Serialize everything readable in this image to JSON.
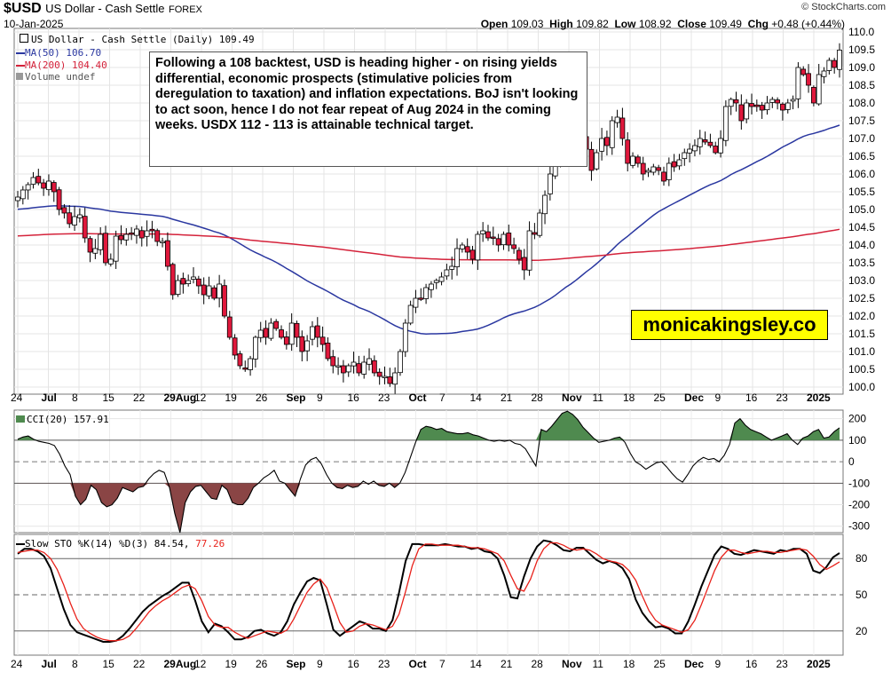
{
  "header": {
    "ticker": "$USD",
    "name": "US Dollar - Cash Settle",
    "exchange": "FOREX",
    "date": "10-Jan-2025",
    "copyright": "© StockCharts.com",
    "ohlc": {
      "open_label": "Open",
      "open": "109.03",
      "high_label": "High",
      "high": "109.82",
      "low_label": "Low",
      "low": "108.92",
      "close_label": "Close",
      "close": "109.49",
      "chg_label": "Chg",
      "chg": "+0.48 (+0.44%)"
    }
  },
  "legend": {
    "main": "US Dollar - Cash Settle (Daily) 109.49",
    "ma50": "MA(50) 106.70",
    "ma200": "MA(200) 104.40",
    "volume": "Volume undef",
    "cci": "CCI(20) 157.91",
    "sto_prefix": "Slow STO %K(14) %D(3)",
    "sto_k": "84.54,",
    "sto_d": "77.26"
  },
  "annotation": "Following a 108 backtest, USD is heading higher - on rising yields differential, economic prospects (stimulative policies from deregulation to taxation) and inflation expectations. BoJ isn't looking to act soon, hence I do not fear repeat of Aug  2024 in the coming weeks. USDX 112 - 113 is attainable technical target.",
  "watermark": "monicakingsley.co",
  "colors": {
    "up_candle": "#ffffff",
    "down_candle": "#e0183c",
    "ma50": "#2a37a0",
    "ma200": "#d4223a",
    "cci_pos_fill": "#4f8a4f",
    "cci_neg_fill": "#8a4545",
    "sto_k": "#000000",
    "sto_d": "#e8211a"
  },
  "chart_data": [
    {
      "type": "candlestick",
      "title": "US Dollar - Cash Settle (Daily)",
      "x_axis_labels": [
        "24",
        "Jul",
        "8",
        "15",
        "22",
        "29Aug",
        "12",
        "19",
        "26",
        "Sep",
        "9",
        "16",
        "23",
        "Oct",
        "7",
        "14",
        "21",
        "28",
        "Nov",
        "11",
        "18",
        "25",
        "Dec",
        "9",
        "16",
        "23",
        "2025"
      ],
      "y_ticks": [
        100.0,
        100.5,
        101.0,
        101.5,
        102.0,
        102.5,
        103.0,
        103.5,
        104.0,
        104.5,
        105.0,
        105.5,
        106.0,
        106.5,
        107.0,
        107.5,
        108.0,
        108.5,
        109.0,
        109.5,
        110.0
      ],
      "ylim": [
        99.8,
        110.1
      ],
      "close": [
        105.35,
        105.55,
        105.7,
        105.9,
        105.75,
        105.6,
        105.8,
        105.5,
        105.0,
        104.9,
        104.6,
        104.8,
        104.85,
        104.2,
        103.8,
        103.9,
        104.3,
        103.5,
        103.6,
        104.25,
        104.15,
        104.3,
        104.3,
        104.45,
        104.2,
        104.4,
        104.4,
        104.1,
        104.1,
        103.4,
        102.6,
        103.0,
        102.9,
        103.0,
        103.1,
        102.85,
        102.6,
        102.85,
        102.5,
        102.9,
        102.0,
        101.4,
        100.9,
        100.6,
        100.5,
        100.8,
        101.4,
        101.6,
        101.4,
        101.8,
        101.65,
        101.4,
        101.2,
        101.8,
        101.4,
        101.0,
        101.3,
        101.7,
        101.4,
        101.2,
        100.8,
        100.6,
        100.6,
        100.4,
        100.6,
        100.7,
        100.4,
        100.7,
        100.8,
        100.4,
        100.3,
        100.3,
        100.1,
        100.4,
        101.0,
        101.8,
        102.3,
        102.5,
        102.5,
        102.8,
        102.9,
        103.0,
        103.1,
        103.3,
        103.4,
        103.9,
        104.0,
        103.8,
        103.6,
        104.3,
        104.4,
        104.2,
        104.2,
        104.0,
        104.3,
        104.0,
        103.9,
        103.6,
        103.3,
        104.4,
        104.3,
        104.9,
        105.4,
        106.0,
        106.3,
        106.6,
        106.8,
        106.5,
        106.8,
        107.1,
        106.7,
        106.1,
        106.6,
        107.0,
        106.8,
        107.5,
        107.6,
        107.0,
        106.3,
        106.5,
        106.3,
        106.0,
        106.1,
        106.2,
        106.1,
        105.8,
        106.3,
        106.2,
        106.4,
        106.6,
        106.7,
        106.8,
        107.0,
        106.9,
        106.8,
        106.6,
        107.0,
        107.9,
        108.1,
        108.0,
        107.5,
        108.0,
        107.9,
        107.9,
        107.8,
        108.0,
        108.1,
        108.0,
        107.8,
        108.0,
        108.1,
        109.0,
        108.8,
        108.5,
        108.0,
        108.8,
        108.9,
        109.2,
        109.0,
        109.49
      ],
      "ma50": "MA(50) 106.70 - smooth trend from ~105.0 (late Jun) to low ~101.5 (mid Oct) rising to 106.70",
      "ma200": "MA(200) 104.40 - from ~104.3 dipping to ~103.55 (Oct) and rising to 104.40"
    },
    {
      "type": "line",
      "title": "CCI(20) 157.91",
      "y_ticks": [
        200,
        100,
        0,
        -100,
        -200,
        -300
      ],
      "ylim": [
        -330,
        240
      ],
      "values": [
        105,
        115,
        120,
        105,
        95,
        90,
        85,
        75,
        35,
        -20,
        -60,
        -160,
        -200,
        -175,
        -110,
        -130,
        -190,
        -210,
        -200,
        -170,
        -120,
        -130,
        -140,
        -120,
        -115,
        -80,
        -55,
        -40,
        -50,
        -120,
        -240,
        -330,
        -190,
        -140,
        -115,
        -110,
        -140,
        -170,
        -175,
        -110,
        -130,
        -190,
        -200,
        -200,
        -170,
        -120,
        -100,
        -75,
        -60,
        -40,
        -90,
        -100,
        -130,
        -160,
        -80,
        -15,
        10,
        20,
        -10,
        -60,
        -100,
        -120,
        -125,
        -110,
        -120,
        -115,
        -90,
        -105,
        -90,
        -110,
        -115,
        -100,
        -120,
        -100,
        -50,
        20,
        90,
        150,
        165,
        160,
        150,
        155,
        140,
        135,
        130,
        130,
        135,
        125,
        120,
        110,
        100,
        95,
        100,
        95,
        100,
        85,
        80,
        60,
        20,
        -20,
        150,
        140,
        165,
        195,
        225,
        235,
        220,
        195,
        160,
        135,
        110,
        90,
        95,
        100,
        110,
        115,
        90,
        40,
        0,
        -15,
        -35,
        -20,
        -5,
        0,
        -25,
        -55,
        -80,
        -95,
        -60,
        -20,
        5,
        20,
        10,
        15,
        0,
        30,
        80,
        180,
        200,
        170,
        150,
        140,
        130,
        115,
        100,
        110,
        120,
        130,
        100,
        80,
        110,
        120,
        140,
        150,
        110,
        115,
        140,
        157.91
      ]
    },
    {
      "type": "line",
      "title": "Slow STO %K(14) %D(3) 84.54, 77.26",
      "y_ticks": [
        80,
        50,
        20
      ],
      "ylim": [
        0,
        100
      ],
      "series": [
        {
          "name": "%K(14)",
          "values": [
            84,
            88,
            88,
            86,
            82,
            72,
            55,
            38,
            25,
            19,
            17,
            15,
            13,
            11,
            11,
            12,
            16,
            22,
            29,
            36,
            41,
            45,
            49,
            52,
            56,
            60,
            60,
            45,
            28,
            19,
            26,
            24,
            19,
            13,
            13,
            15,
            20,
            21,
            18,
            16,
            19,
            28,
            42,
            52,
            61,
            64,
            62,
            42,
            21,
            16,
            20,
            24,
            28,
            26,
            22,
            22,
            20,
            29,
            52,
            78,
            92,
            92,
            91,
            91,
            91,
            92,
            91,
            90,
            90,
            88,
            89,
            86,
            85,
            80,
            66,
            48,
            47,
            65,
            80,
            90,
            95,
            94,
            91,
            87,
            86,
            89,
            89,
            84,
            79,
            76,
            78,
            76,
            72,
            63,
            46,
            35,
            28,
            23,
            24,
            22,
            18,
            18,
            28,
            42,
            57,
            70,
            83,
            90,
            88,
            84,
            83,
            85,
            87,
            86,
            85,
            84,
            87,
            86,
            88,
            88,
            84,
            70,
            68,
            73,
            81,
            84.54
          ]
        },
        {
          "name": "%D(3)",
          "values": [
            85,
            86,
            87,
            87,
            85,
            80,
            71,
            58,
            43,
            30,
            22,
            18,
            15,
            13,
            12,
            12,
            13,
            16,
            22,
            29,
            36,
            41,
            45,
            48,
            52,
            56,
            58,
            55,
            45,
            32,
            25,
            23,
            23,
            19,
            16,
            14,
            16,
            18,
            20,
            19,
            18,
            21,
            30,
            41,
            52,
            59,
            63,
            56,
            42,
            27,
            19,
            20,
            24,
            26,
            25,
            23,
            21,
            24,
            34,
            53,
            74,
            88,
            92,
            92,
            91,
            91,
            91,
            91,
            90,
            89,
            89,
            88,
            86,
            84,
            78,
            66,
            55,
            53,
            63,
            78,
            88,
            93,
            93,
            91,
            88,
            87,
            88,
            87,
            84,
            80,
            78,
            77,
            75,
            70,
            62,
            49,
            37,
            29,
            25,
            23,
            21,
            19,
            21,
            29,
            42,
            56,
            70,
            81,
            87,
            87,
            85,
            84,
            85,
            86,
            86,
            85,
            85,
            86,
            87,
            88,
            87,
            82,
            75,
            71,
            74,
            77.26
          ]
        }
      ]
    }
  ]
}
